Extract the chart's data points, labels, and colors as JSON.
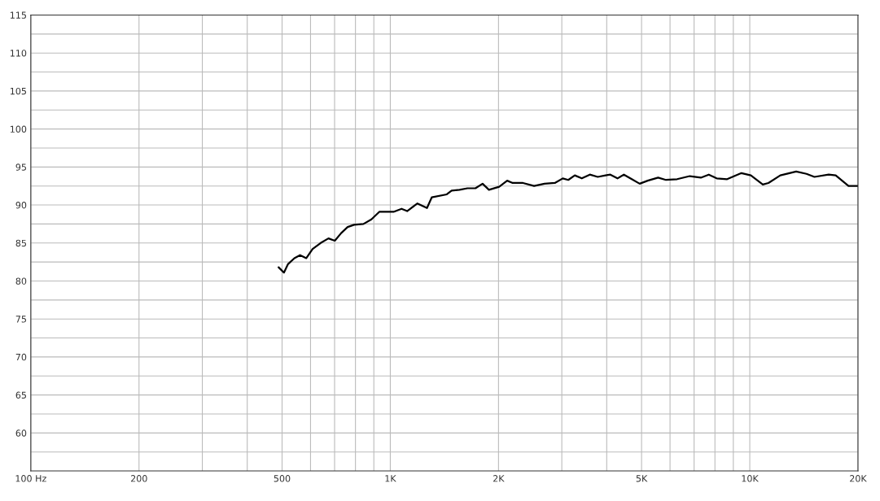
{
  "chart_data": {
    "type": "line",
    "x": [
      489,
      506,
      519,
      541,
      561,
      584,
      608,
      640,
      673,
      701,
      730,
      761,
      793,
      842,
      886,
      932,
      1021,
      1075,
      1114,
      1190,
      1265,
      1304,
      1436,
      1481,
      1558,
      1639,
      1725,
      1806,
      1881,
      2009,
      2114,
      2190,
      2340,
      2512,
      2685,
      2869,
      3018,
      3127,
      3260,
      3410,
      3590,
      3776,
      3970,
      4093,
      4285,
      4465,
      4695,
      4940,
      5200,
      5560,
      5846,
      6280,
      6810,
      7310,
      7690,
      8090,
      8650,
      9480,
      10070,
      10870,
      11270,
      12160,
      13460,
      14380,
      15130,
      16580,
      17340,
      18820,
      20000
    ],
    "series": [
      {
        "color": "#000000",
        "values": [
          81.8,
          81.1,
          82.2,
          83.0,
          83.4,
          83.0,
          84.2,
          85.0,
          85.6,
          85.3,
          86.3,
          87.1,
          87.4,
          87.5,
          88.1,
          89.1,
          89.1,
          89.5,
          89.2,
          90.2,
          89.6,
          91.0,
          91.4,
          91.9,
          92.0,
          92.2,
          92.2,
          92.8,
          92.0,
          92.4,
          93.2,
          92.9,
          92.9,
          92.5,
          92.8,
          92.9,
          93.5,
          93.3,
          93.9,
          93.5,
          94.0,
          93.7,
          93.9,
          94.0,
          93.5,
          94.0,
          93.4,
          92.8,
          93.2,
          93.6,
          93.3,
          93.4,
          93.8,
          93.6,
          94.0,
          93.5,
          93.4,
          94.2,
          93.9,
          92.7,
          92.9,
          93.9,
          94.4,
          94.1,
          93.7,
          94.0,
          93.9,
          92.5,
          92.5
        ]
      }
    ],
    "log": "x",
    "xlim": [
      100,
      20000
    ],
    "xticks": [
      {
        "value": 100,
        "label": "100 Hz"
      },
      {
        "value": 200,
        "label": "200"
      },
      {
        "value": 300,
        "label": null
      },
      {
        "value": 400,
        "label": null
      },
      {
        "value": 500,
        "label": "500"
      },
      {
        "value": 600,
        "label": null
      },
      {
        "value": 700,
        "label": null
      },
      {
        "value": 800,
        "label": null
      },
      {
        "value": 900,
        "label": null
      },
      {
        "value": 1000,
        "label": "1K"
      },
      {
        "value": 2000,
        "label": "2K"
      },
      {
        "value": 3000,
        "label": null
      },
      {
        "value": 4000,
        "label": null
      },
      {
        "value": 5000,
        "label": "5K"
      },
      {
        "value": 6000,
        "label": null
      },
      {
        "value": 7000,
        "label": null
      },
      {
        "value": 8000,
        "label": null
      },
      {
        "value": 9000,
        "label": null
      },
      {
        "value": 10000,
        "label": "10K"
      },
      {
        "value": 20000,
        "label": "20K"
      }
    ],
    "ylim": [
      55,
      115
    ],
    "yticks": [
      {
        "value": 57.5,
        "label": null
      },
      60,
      {
        "value": 62.5,
        "label": null
      },
      65,
      {
        "value": 67.5,
        "label": null
      },
      70,
      {
        "value": 72.5,
        "label": null
      },
      75,
      {
        "value": 77.5,
        "label": null
      },
      80,
      {
        "value": 82.5,
        "label": null
      },
      85,
      {
        "value": 87.5,
        "label": null
      },
      90,
      {
        "value": 92.5,
        "label": null
      },
      95,
      {
        "value": 97.5,
        "label": null
      },
      100,
      {
        "value": 102.5,
        "label": null
      },
      105,
      {
        "value": 107.5,
        "label": null
      },
      110,
      {
        "value": 112.5,
        "label": null
      },
      115
    ],
    "grid": true,
    "marker": "none",
    "line_style": "solid"
  }
}
